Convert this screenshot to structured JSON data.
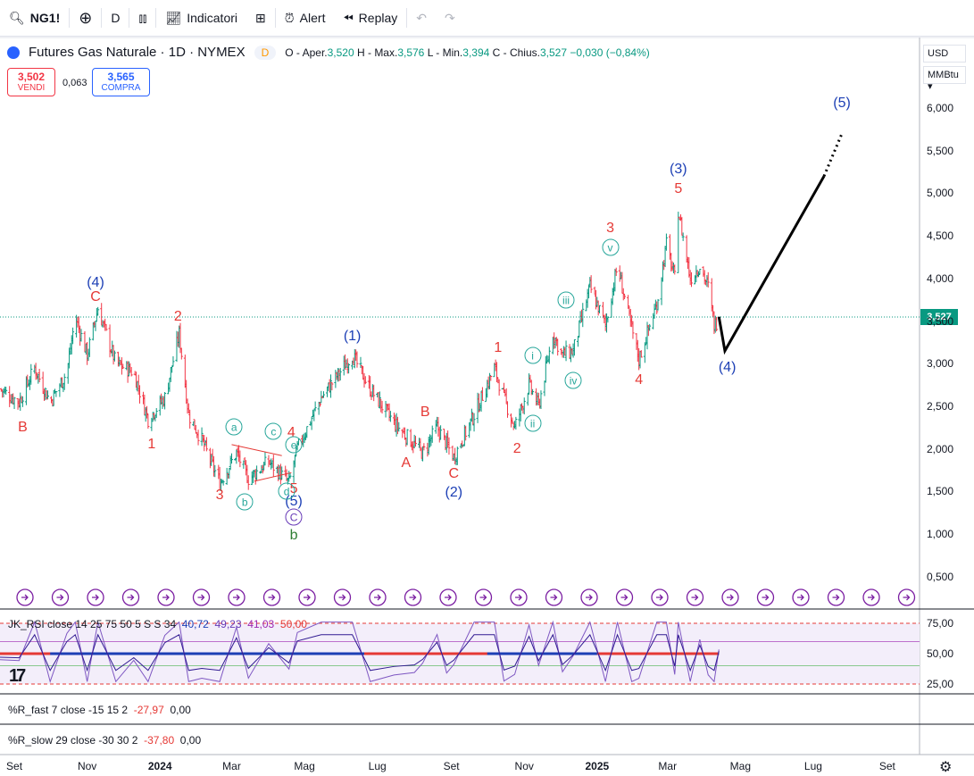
{
  "toolbar": {
    "symbol": "NG1!",
    "interval": "D",
    "indicators": "Indicatori",
    "alert": "Alert",
    "replay": "Replay",
    "icons": [
      "search-icon",
      "add-symbol-icon",
      "bar-style-icon",
      "indicators-icon",
      "layout-icon",
      "alert-icon",
      "replay-icon",
      "undo-icon",
      "redo-icon"
    ]
  },
  "header": {
    "title": "Futures Gas Naturale · 1D · NYMEX",
    "badge": "D",
    "o_label": "O - Aper.",
    "o": "3,520",
    "h_label": "H - Max.",
    "h": "3,576",
    "l_label": "L - Min.",
    "l": "3,394",
    "c_label": "C - Chius.",
    "c": "3,527",
    "change": "−0,030 (−0,84%)"
  },
  "trade": {
    "sell_price": "3,502",
    "sell_label": "VENDI",
    "spread": "0,063",
    "buy_price": "3,565",
    "buy_label": "COMPRA"
  },
  "axis": {
    "currency": "USD",
    "unit": "MMBtu",
    "last_price": "3,527"
  },
  "indicators": {
    "rsi_label": "JK_RSI close 14 25 75 50 5 S S 34",
    "rsi_values": [
      "40,72",
      "49,23",
      "41,03",
      "50,00"
    ],
    "rsi_ticks": [
      "75,00",
      "50,00",
      "25,00"
    ],
    "rfast_label": "%R_fast 7 close -15 15 2",
    "rfast_values": [
      "-27,97",
      "0,00"
    ],
    "rslow_label": "%R_slow 29 close -30 30 2",
    "rslow_values": [
      "-37,80",
      "0,00"
    ]
  },
  "colors": {
    "up": "#089981",
    "down": "#f23645",
    "wave_red": "#e53935",
    "wave_blue": "#1c3fb5",
    "minor": "#26a69a"
  },
  "chart_data": {
    "type": "candlestick",
    "title": "Futures Gas Naturale · 1D · NYMEX",
    "ylim": [
      0.1,
      6.3
    ],
    "y_ticks": [
      "6,000",
      "5,500",
      "5,000",
      "4,500",
      "4,000",
      "3,500",
      "3,000",
      "2,500",
      "2,000",
      "1,500",
      "1,000",
      "0,500"
    ],
    "y_tick_values": [
      6.0,
      5.5,
      5.0,
      4.5,
      4.0,
      3.5,
      3.0,
      2.5,
      2.0,
      1.5,
      1.0,
      0.5
    ],
    "x_ticks": [
      "Set",
      "Nov",
      "2024",
      "Mar",
      "Mag",
      "Lug",
      "Set",
      "Nov",
      "2025",
      "Mar",
      "Mag",
      "Lug",
      "Set"
    ],
    "price_path": [
      [
        "2023-08-20",
        2.7
      ],
      [
        "2023-09-05",
        2.55
      ],
      [
        "2023-09-18",
        2.95
      ],
      [
        "2023-10-01",
        2.55
      ],
      [
        "2023-10-15",
        2.9
      ],
      [
        "2023-10-22",
        3.55
      ],
      [
        "2023-11-01",
        3.1
      ],
      [
        "2023-11-10",
        3.65
      ],
      [
        "2023-11-25",
        3.0
      ],
      [
        "2023-12-10",
        2.9
      ],
      [
        "2023-12-22",
        2.35
      ],
      [
        "2024-01-05",
        2.6
      ],
      [
        "2024-01-17",
        3.35
      ],
      [
        "2024-01-25",
        2.4
      ],
      [
        "2024-02-05",
        2.1
      ],
      [
        "2024-02-20",
        1.6
      ],
      [
        "2024-03-05",
        1.95
      ],
      [
        "2024-03-15",
        1.65
      ],
      [
        "2024-04-01",
        1.85
      ],
      [
        "2024-04-18",
        1.6
      ],
      [
        "2024-04-25",
        2.0
      ],
      [
        "2024-05-15",
        2.6
      ],
      [
        "2024-06-10",
        3.1
      ],
      [
        "2024-06-25",
        2.7
      ],
      [
        "2024-07-15",
        2.3
      ],
      [
        "2024-08-01",
        2.05
      ],
      [
        "2024-08-08",
        1.95
      ],
      [
        "2024-08-20",
        2.25
      ],
      [
        "2024-08-28",
        2.05
      ],
      [
        "2024-09-03",
        1.9
      ],
      [
        "2024-09-20",
        2.4
      ],
      [
        "2024-10-07",
        2.95
      ],
      [
        "2024-10-15",
        2.6
      ],
      [
        "2024-10-24",
        2.25
      ],
      [
        "2024-11-05",
        2.75
      ],
      [
        "2024-11-13",
        2.5
      ],
      [
        "2024-11-25",
        3.35
      ],
      [
        "2024-12-03",
        3.1
      ],
      [
        "2024-12-12",
        3.15
      ],
      [
        "2024-12-26",
        3.9
      ],
      [
        "2025-01-08",
        3.45
      ],
      [
        "2025-01-18",
        4.15
      ],
      [
        "2025-01-30",
        3.4
      ],
      [
        "2025-02-05",
        3.05
      ],
      [
        "2025-02-20",
        3.7
      ],
      [
        "2025-02-28",
        4.4
      ],
      [
        "2025-03-07",
        4.0
      ],
      [
        "2025-03-10",
        4.8
      ],
      [
        "2025-03-20",
        4.0
      ],
      [
        "2025-03-28",
        4.15
      ],
      [
        "2025-04-04",
        3.9
      ],
      [
        "2025-04-09",
        3.45
      ],
      [
        "2025-04-13",
        3.53
      ]
    ],
    "projection": [
      [
        "2025-04-13",
        3.55
      ],
      [
        "2025-04-18",
        3.15
      ],
      [
        "2025-07-10",
        5.2
      ],
      [
        "2025-07-25",
        5.7
      ]
    ],
    "wave_labels": [
      {
        "t": "(4)",
        "d": "2023-11-08",
        "p": 3.95,
        "c": "blue"
      },
      {
        "t": "C",
        "d": "2023-11-08",
        "p": 3.78,
        "c": "red"
      },
      {
        "t": "B",
        "d": "2023-09-08",
        "p": 2.25,
        "c": "red"
      },
      {
        "t": "1",
        "d": "2023-12-25",
        "p": 2.05,
        "c": "red"
      },
      {
        "t": "2",
        "d": "2024-01-16",
        "p": 3.55,
        "c": "red"
      },
      {
        "t": "3",
        "d": "2024-02-20",
        "p": 1.45,
        "c": "red"
      },
      {
        "t": "4",
        "d": "2024-04-20",
        "p": 2.18,
        "c": "red"
      },
      {
        "t": "5",
        "d": "2024-04-22",
        "p": 1.52,
        "c": "red"
      },
      {
        "t": "(5)",
        "d": "2024-04-22",
        "p": 1.38,
        "c": "blue"
      },
      {
        "t": "b",
        "d": "2024-04-22",
        "p": 0.98,
        "c": "green"
      },
      {
        "t": "(1)",
        "d": "2024-06-10",
        "p": 3.32,
        "c": "blue"
      },
      {
        "t": "A",
        "d": "2024-07-25",
        "p": 1.83,
        "c": "red"
      },
      {
        "t": "B",
        "d": "2024-08-10",
        "p": 2.43,
        "c": "red"
      },
      {
        "t": "C",
        "d": "2024-09-03",
        "p": 1.7,
        "c": "red"
      },
      {
        "t": "(2)",
        "d": "2024-09-03",
        "p": 1.48,
        "c": "blue"
      },
      {
        "t": "1",
        "d": "2024-10-10",
        "p": 3.18,
        "c": "red"
      },
      {
        "t": "2",
        "d": "2024-10-26",
        "p": 2.0,
        "c": "red"
      },
      {
        "t": "3",
        "d": "2025-01-12",
        "p": 4.58,
        "c": "red"
      },
      {
        "t": "4",
        "d": "2025-02-05",
        "p": 2.8,
        "c": "red"
      },
      {
        "t": "(3)",
        "d": "2025-03-10",
        "p": 5.28,
        "c": "blue"
      },
      {
        "t": "5",
        "d": "2025-03-10",
        "p": 5.05,
        "c": "red"
      },
      {
        "t": "(4)",
        "d": "2025-04-20",
        "p": 2.95,
        "c": "blue"
      },
      {
        "t": "(5)",
        "d": "2025-07-25",
        "p": 6.05,
        "c": "blue"
      }
    ],
    "minor_labels": [
      {
        "t": "a",
        "d": "2024-03-03",
        "p": 2.26
      },
      {
        "t": "b",
        "d": "2024-03-12",
        "p": 1.38
      },
      {
        "t": "c",
        "d": "2024-04-05",
        "p": 2.21
      },
      {
        "t": "d",
        "d": "2024-04-16",
        "p": 1.5
      },
      {
        "t": "e",
        "d": "2024-04-22",
        "p": 2.05
      },
      {
        "t": "C",
        "d": "2024-04-22",
        "p": 1.2,
        "purple": true
      },
      {
        "t": "i",
        "d": "2024-11-08",
        "p": 3.1
      },
      {
        "t": "ii",
        "d": "2024-11-08",
        "p": 2.3
      },
      {
        "t": "iii",
        "d": "2024-12-06",
        "p": 3.75
      },
      {
        "t": "iv",
        "d": "2024-12-12",
        "p": 2.8
      },
      {
        "t": "v",
        "d": "2025-01-12",
        "p": 4.37
      }
    ]
  }
}
